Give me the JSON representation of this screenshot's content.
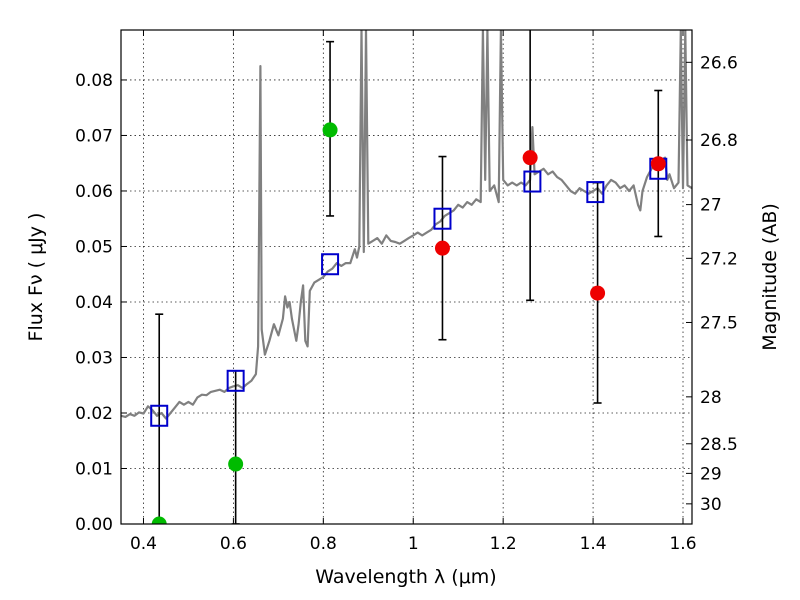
{
  "chart_data": {
    "type": "scatter",
    "xlabel": "Wavelength  λ (μm)",
    "ylabel": "Flux  Fν  ( μJy )",
    "y2label": "Magnitude (AB)",
    "xlim": [
      0.35,
      1.62
    ],
    "ylim": [
      0.0,
      0.089
    ],
    "grid": true,
    "x_ticks": [
      0.4,
      0.6,
      0.8,
      1.0,
      1.2,
      1.4,
      1.6
    ],
    "x_tick_labels": [
      "0.4",
      "0.6",
      "0.8",
      "1",
      "1.2",
      "1.4",
      "1.6"
    ],
    "y_ticks": [
      0.0,
      0.01,
      0.02,
      0.03,
      0.04,
      0.05,
      0.06,
      0.07,
      0.08
    ],
    "y_tick_labels": [
      "0.00",
      "0.01",
      "0.02",
      "0.03",
      "0.04",
      "0.05",
      "0.06",
      "0.07",
      "0.08"
    ],
    "y2_ticks": [
      {
        "label": "26.6",
        "mag": 26.6
      },
      {
        "label": "26.8",
        "mag": 26.8
      },
      {
        "label": "27",
        "mag": 27.0
      },
      {
        "label": "27.2",
        "mag": 27.2
      },
      {
        "label": "27.5",
        "mag": 27.5
      },
      {
        "label": "28",
        "mag": 28.0
      },
      {
        "label": "28.5",
        "mag": 28.5
      },
      {
        "label": "29",
        "mag": 29.0
      },
      {
        "label": "30",
        "mag": 30.0
      }
    ],
    "colors": {
      "model": "#808080",
      "model_points": "#0000cc",
      "observed": "#ee0000",
      "upper_limit": "#00bb00",
      "errorbar": "#000000"
    },
    "model_spectrum": [
      [
        0.35,
        0.0195
      ],
      [
        0.36,
        0.0193
      ],
      [
        0.37,
        0.0198
      ],
      [
        0.38,
        0.0195
      ],
      [
        0.39,
        0.0201
      ],
      [
        0.4,
        0.0199
      ],
      [
        0.41,
        0.0212
      ],
      [
        0.42,
        0.0205
      ],
      [
        0.43,
        0.0195
      ],
      [
        0.44,
        0.02
      ],
      [
        0.45,
        0.019
      ],
      [
        0.46,
        0.02
      ],
      [
        0.47,
        0.021
      ],
      [
        0.48,
        0.022
      ],
      [
        0.49,
        0.0215
      ],
      [
        0.5,
        0.022
      ],
      [
        0.51,
        0.0215
      ],
      [
        0.52,
        0.0228
      ],
      [
        0.53,
        0.0233
      ],
      [
        0.54,
        0.0232
      ],
      [
        0.55,
        0.0238
      ],
      [
        0.56,
        0.024
      ],
      [
        0.57,
        0.0242
      ],
      [
        0.58,
        0.0238
      ],
      [
        0.59,
        0.0245
      ],
      [
        0.6,
        0.0248
      ],
      [
        0.61,
        0.025
      ],
      [
        0.62,
        0.0245
      ],
      [
        0.63,
        0.0252
      ],
      [
        0.64,
        0.0258
      ],
      [
        0.65,
        0.027
      ],
      [
        0.655,
        0.032
      ],
      [
        0.66,
        0.0825
      ],
      [
        0.663,
        0.035
      ],
      [
        0.67,
        0.0305
      ],
      [
        0.68,
        0.033
      ],
      [
        0.69,
        0.036
      ],
      [
        0.7,
        0.034
      ],
      [
        0.71,
        0.037
      ],
      [
        0.715,
        0.041
      ],
      [
        0.72,
        0.039
      ],
      [
        0.725,
        0.04
      ],
      [
        0.73,
        0.037
      ],
      [
        0.74,
        0.033
      ],
      [
        0.745,
        0.036
      ],
      [
        0.75,
        0.04
      ],
      [
        0.755,
        0.043
      ],
      [
        0.76,
        0.033
      ],
      [
        0.765,
        0.032
      ],
      [
        0.77,
        0.042
      ],
      [
        0.78,
        0.0435
      ],
      [
        0.79,
        0.044
      ],
      [
        0.8,
        0.0445
      ],
      [
        0.81,
        0.0455
      ],
      [
        0.82,
        0.046
      ],
      [
        0.83,
        0.047
      ],
      [
        0.84,
        0.0465
      ],
      [
        0.85,
        0.047
      ],
      [
        0.86,
        0.047
      ],
      [
        0.87,
        0.0495
      ],
      [
        0.875,
        0.048
      ],
      [
        0.88,
        0.05
      ],
      [
        0.885,
        0.089
      ],
      [
        0.89,
        0.049
      ],
      [
        0.895,
        0.089
      ],
      [
        0.9,
        0.0505
      ],
      [
        0.91,
        0.051
      ],
      [
        0.92,
        0.0515
      ],
      [
        0.93,
        0.0505
      ],
      [
        0.94,
        0.052
      ],
      [
        0.95,
        0.051
      ],
      [
        0.96,
        0.0508
      ],
      [
        0.97,
        0.0505
      ],
      [
        0.98,
        0.051
      ],
      [
        0.99,
        0.0515
      ],
      [
        1.0,
        0.052
      ],
      [
        1.01,
        0.0525
      ],
      [
        1.02,
        0.052
      ],
      [
        1.03,
        0.0525
      ],
      [
        1.04,
        0.053
      ],
      [
        1.05,
        0.054
      ],
      [
        1.06,
        0.0545
      ],
      [
        1.07,
        0.0555
      ],
      [
        1.08,
        0.056
      ],
      [
        1.09,
        0.0565
      ],
      [
        1.1,
        0.0575
      ],
      [
        1.11,
        0.057
      ],
      [
        1.12,
        0.058
      ],
      [
        1.13,
        0.0575
      ],
      [
        1.14,
        0.0585
      ],
      [
        1.15,
        0.058
      ],
      [
        1.155,
        0.089
      ],
      [
        1.16,
        0.062
      ],
      [
        1.165,
        0.089
      ],
      [
        1.17,
        0.06
      ],
      [
        1.18,
        0.061
      ],
      [
        1.19,
        0.058
      ],
      [
        1.195,
        0.089
      ],
      [
        1.2,
        0.062
      ],
      [
        1.21,
        0.061
      ],
      [
        1.22,
        0.0615
      ],
      [
        1.23,
        0.061
      ],
      [
        1.24,
        0.0615
      ],
      [
        1.25,
        0.061
      ],
      [
        1.26,
        0.062
      ],
      [
        1.265,
        0.0715
      ],
      [
        1.27,
        0.063
      ],
      [
        1.28,
        0.0635
      ],
      [
        1.29,
        0.064
      ],
      [
        1.3,
        0.063
      ],
      [
        1.31,
        0.0635
      ],
      [
        1.32,
        0.0625
      ],
      [
        1.33,
        0.062
      ],
      [
        1.34,
        0.061
      ],
      [
        1.35,
        0.06
      ],
      [
        1.36,
        0.0595
      ],
      [
        1.37,
        0.0605
      ],
      [
        1.38,
        0.06
      ],
      [
        1.39,
        0.0595
      ],
      [
        1.4,
        0.06
      ],
      [
        1.41,
        0.0605
      ],
      [
        1.42,
        0.0595
      ],
      [
        1.43,
        0.061
      ],
      [
        1.44,
        0.062
      ],
      [
        1.45,
        0.0615
      ],
      [
        1.46,
        0.0605
      ],
      [
        1.47,
        0.061
      ],
      [
        1.48,
        0.06
      ],
      [
        1.49,
        0.061
      ],
      [
        1.5,
        0.0575
      ],
      [
        1.505,
        0.0565
      ],
      [
        1.51,
        0.06
      ],
      [
        1.52,
        0.0625
      ],
      [
        1.53,
        0.064
      ],
      [
        1.54,
        0.065
      ],
      [
        1.55,
        0.0655
      ],
      [
        1.56,
        0.066
      ],
      [
        1.565,
        0.062
      ],
      [
        1.57,
        0.063
      ],
      [
        1.58,
        0.0605
      ],
      [
        1.59,
        0.0615
      ],
      [
        1.595,
        0.089
      ],
      [
        1.6,
        0.0605
      ],
      [
        1.605,
        0.089
      ],
      [
        1.61,
        0.061
      ],
      [
        1.62,
        0.0605
      ]
    ],
    "series": [
      {
        "marker": "open-square",
        "color": "#0000cc",
        "points": [
          {
            "x": 0.435,
            "y": 0.0195
          },
          {
            "x": 0.605,
            "y": 0.0258
          },
          {
            "x": 0.815,
            "y": 0.0468
          },
          {
            "x": 1.065,
            "y": 0.055
          },
          {
            "x": 1.265,
            "y": 0.0617
          },
          {
            "x": 1.405,
            "y": 0.0598
          },
          {
            "x": 1.545,
            "y": 0.064
          }
        ]
      },
      {
        "marker": "filled-circle",
        "color": "#ee0000",
        "points": [
          {
            "x": 1.065,
            "y": 0.0497,
            "yerr_low": 0.0332,
            "yerr_high": 0.0662
          },
          {
            "x": 1.26,
            "y": 0.066,
            "yerr_low": 0.0403,
            "yerr_high": 0.09
          },
          {
            "x": 1.41,
            "y": 0.0416,
            "yerr_low": 0.0218,
            "yerr_high": 0.0615
          },
          {
            "x": 1.545,
            "y": 0.0649,
            "yerr_low": 0.0518,
            "yerr_high": 0.0781
          }
        ]
      },
      {
        "marker": "filled-circle",
        "color": "#00bb00",
        "points": [
          {
            "x": 0.435,
            "y": 0.0,
            "yerr_low": 0.0,
            "yerr_high": 0.0378
          },
          {
            "x": 0.605,
            "y": 0.0108,
            "yerr_low": 0.0,
            "yerr_high": 0.0276
          },
          {
            "x": 0.815,
            "y": 0.071,
            "yerr_low": 0.0555,
            "yerr_high": 0.0869
          }
        ]
      }
    ]
  }
}
